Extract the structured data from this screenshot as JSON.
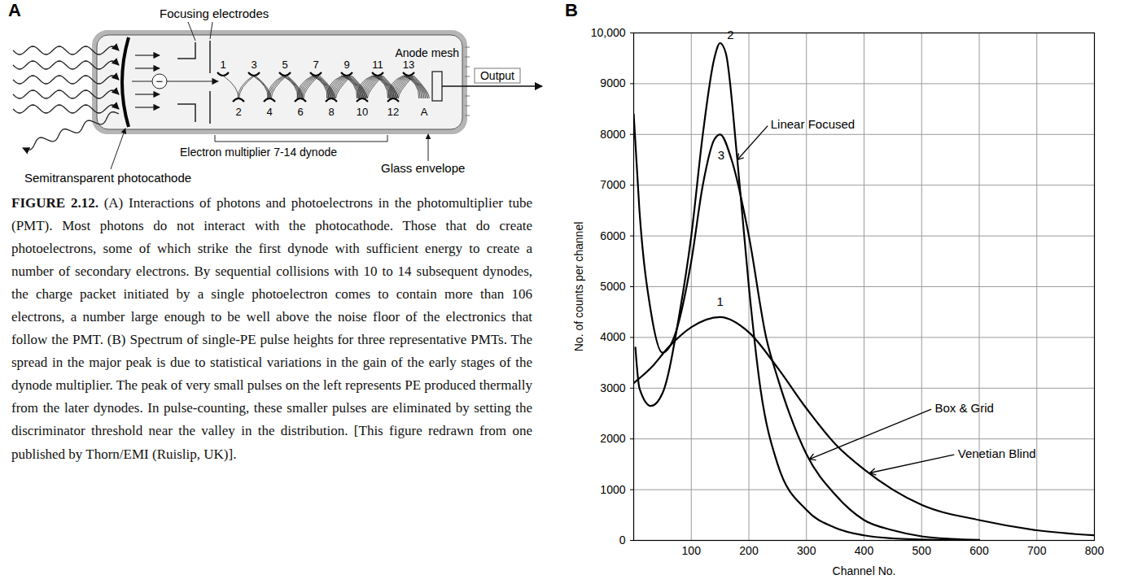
{
  "diagram": {
    "label": "A",
    "labels": {
      "focusing": "Focusing electrodes",
      "photocathode": "Semitransparent photocathode",
      "multiplier": "Electron multiplier 7-14 dynode",
      "envelope": "Glass envelope",
      "anode_mesh": "Anode mesh",
      "output": "Output",
      "electron": "−"
    },
    "dynodes": [
      "1",
      "2",
      "3",
      "4",
      "5",
      "6",
      "7",
      "8",
      "9",
      "10",
      "11",
      "12",
      "13"
    ],
    "anode": "A"
  },
  "caption": {
    "label": "FIGURE 2.12.",
    "text": "(A) Interactions of photons and photoelectrons in the photomultiplier tube (PMT). Most photons do not interact with the photocathode. Those that do create photoelectrons, some of which strike the first dynode with sufficient energy to create a number of secondary electrons. By sequential collisions with 10 to 14 subsequent dynodes, the charge packet initiated by a single photoelectron comes to contain more than 106 electrons, a number large enough to be well above the noise floor of the electronics that follow the PMT. (B) Spectrum of single-PE pulse heights for three representative PMTs. The spread in the major peak is due to statistical variations in the gain of the early stages of the dynode multiplier. The peak of very small pulses on the left represents PE produced thermally from the later dynodes. In pulse-counting, these smaller pulses are eliminated by setting the discriminator threshold near the valley in the distribution. [This figure redrawn from one published by Thorn/EMI (Ruislip, UK)]."
  },
  "chart_data": {
    "type": "line",
    "panel_label": "B",
    "x_label": "Channel No.",
    "y_label": "No. of counts per channel",
    "xlim": [
      0,
      800
    ],
    "xticks": [
      100,
      200,
      300,
      400,
      500,
      600,
      700,
      800
    ],
    "ylim": [
      0,
      10000
    ],
    "yticks": [
      0,
      1000,
      2000,
      3000,
      4000,
      5000,
      6000,
      7000,
      8000,
      9000,
      {
        "value": 10000,
        "label": "10,000"
      }
    ],
    "grid": true,
    "series": [
      {
        "name": "Linear Focused",
        "color": "#000000",
        "line_style": "solid",
        "x": [
          3,
          10,
          30,
          50,
          80,
          100,
          120,
          140,
          150,
          160,
          180,
          200,
          220,
          250,
          300,
          350,
          400,
          450,
          500,
          600
        ],
        "values": [
          3800,
          3000,
          2650,
          2900,
          4500,
          6000,
          8000,
          9500,
          9800,
          9600,
          7500,
          5000,
          3000,
          1500,
          600,
          250,
          100,
          40,
          20,
          0
        ]
      },
      {
        "name": "Box & Grid",
        "color": "#000000",
        "line_style": "solid",
        "x": [
          0,
          10,
          30,
          50,
          70,
          100,
          120,
          140,
          150,
          170,
          200,
          230,
          250,
          300,
          350,
          400,
          450,
          500,
          550,
          600
        ],
        "values": [
          8400,
          6500,
          4500,
          3700,
          4000,
          5500,
          7000,
          7900,
          8000,
          7500,
          6000,
          4000,
          3200,
          1700,
          900,
          400,
          200,
          80,
          30,
          10
        ]
      },
      {
        "name": "Venetian Blind",
        "color": "#000000",
        "line_style": "solid",
        "x": [
          0,
          30,
          60,
          100,
          150,
          200,
          250,
          300,
          350,
          400,
          450,
          500,
          600,
          700,
          800
        ],
        "values": [
          3100,
          3400,
          3800,
          4200,
          4400,
          4100,
          3400,
          2600,
          1900,
          1400,
          1000,
          700,
          400,
          200,
          100
        ]
      }
    ],
    "annotations": [
      {
        "text": "2",
        "x": 168,
        "y": 9950
      },
      {
        "text": "3",
        "x": 152,
        "y": 7580
      },
      {
        "text": "1",
        "x": 150,
        "y": 4700
      },
      {
        "text": "Linear Focused",
        "x": 235,
        "y": 8200,
        "point_to": [
          180,
          7500
        ]
      },
      {
        "text": "Box & Grid",
        "x": 520,
        "y": 2600,
        "point_to": [
          305,
          1600
        ]
      },
      {
        "text": "Venetian Blind",
        "x": 560,
        "y": 1700,
        "point_to": [
          410,
          1330
        ]
      }
    ]
  }
}
